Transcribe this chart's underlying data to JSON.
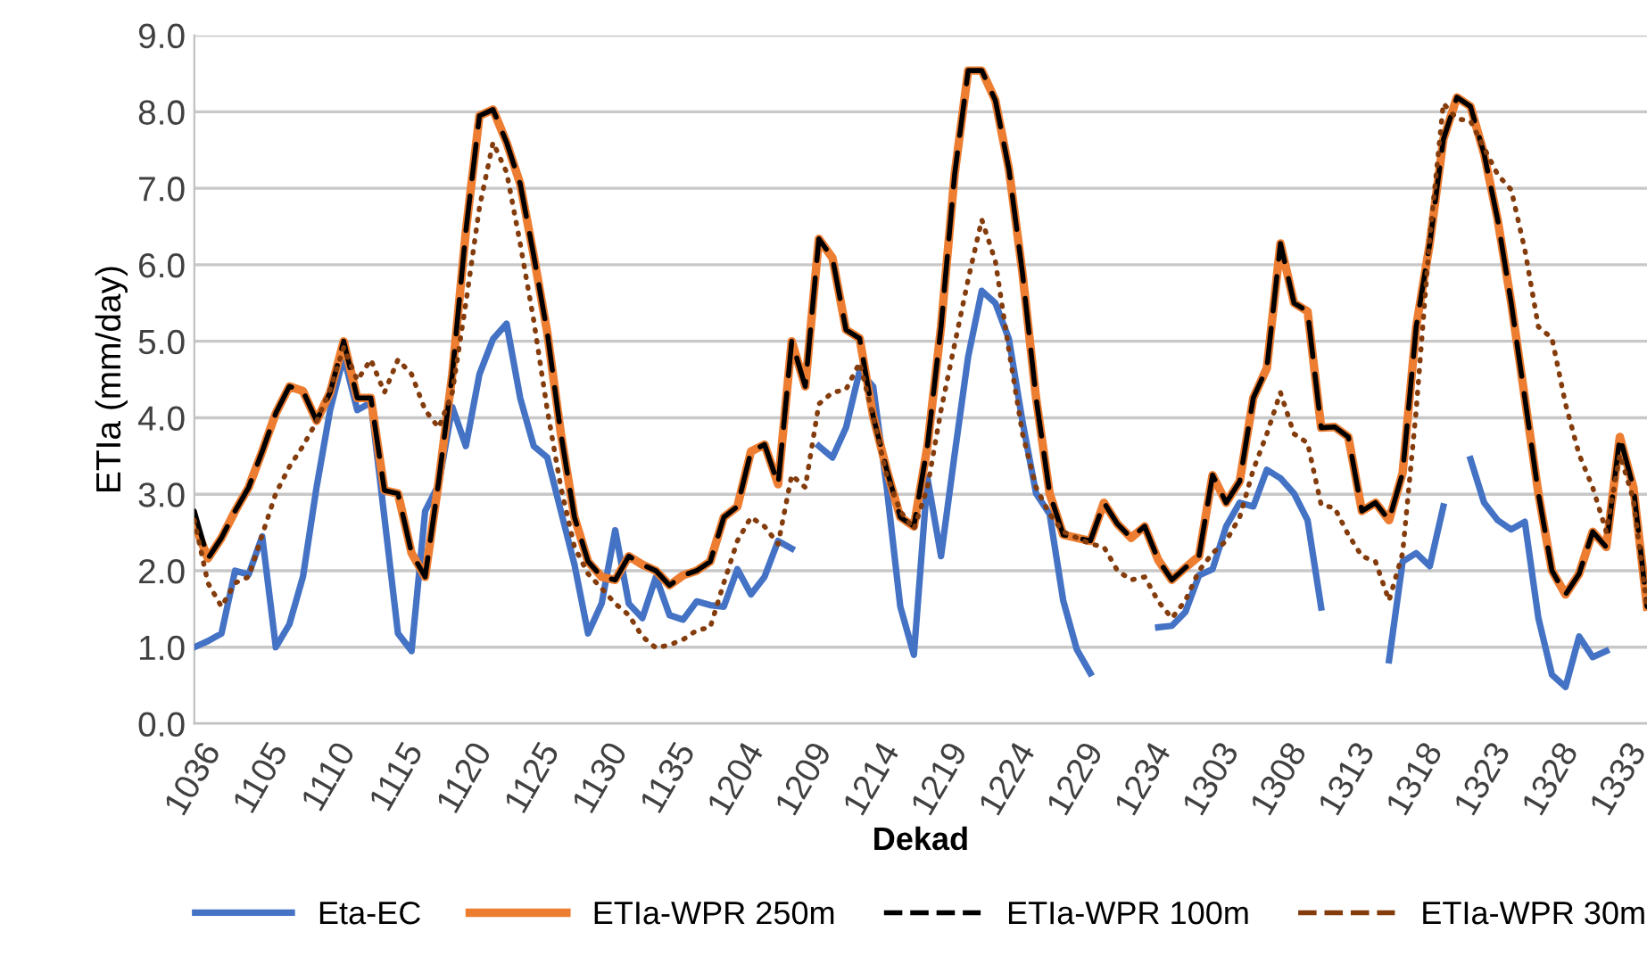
{
  "chart_data": {
    "type": "line",
    "xlabel": "Dekad",
    "ylabel": "ETIa (mm/day)",
    "categories": [
      "1036",
      null,
      null,
      null,
      null,
      "1105",
      null,
      null,
      null,
      null,
      "1110",
      null,
      null,
      null,
      null,
      "1115",
      null,
      null,
      null,
      null,
      "1120",
      null,
      null,
      null,
      null,
      "1125",
      null,
      null,
      null,
      null,
      "1130",
      null,
      null,
      null,
      null,
      "1135",
      null,
      null,
      null,
      null,
      "1204",
      null,
      null,
      null,
      null,
      "1209",
      null,
      null,
      null,
      null,
      "1214",
      null,
      null,
      null,
      null,
      "1219",
      null,
      null,
      null,
      null,
      "1224",
      null,
      null,
      null,
      null,
      "1229",
      null,
      null,
      null,
      null,
      "1234",
      null,
      null,
      null,
      null,
      "1303",
      null,
      null,
      null,
      null,
      "1308",
      null,
      null,
      null,
      null,
      "1313",
      null,
      null,
      null,
      null,
      "1318",
      null,
      null,
      null,
      null,
      "1323",
      null,
      null,
      null,
      null,
      "1328",
      null,
      null,
      null,
      null,
      "1333",
      null,
      null
    ],
    "ylim": [
      0,
      9
    ],
    "yticks": [
      {
        "value": 0,
        "label": "0.0"
      },
      {
        "value": 1,
        "label": "1.0"
      },
      {
        "value": 2,
        "label": "2.0"
      },
      {
        "value": 3,
        "label": "3.0"
      },
      {
        "value": 4,
        "label": "4.0"
      },
      {
        "value": 5,
        "label": "5.0"
      },
      {
        "value": 6,
        "label": "6.0"
      },
      {
        "value": 7,
        "label": "7.0"
      },
      {
        "value": 8,
        "label": "8.0"
      },
      {
        "value": 9,
        "label": "9.0"
      }
    ],
    "grid": "y",
    "legend": "bottom",
    "marker": "none",
    "series": [
      {
        "name": "Eta-EC",
        "color": "#4472c4",
        "line_style": "solid",
        "values": [
          1.0,
          1.08,
          1.18,
          2.0,
          1.95,
          2.45,
          1.0,
          1.3,
          1.92,
          3.09,
          4.1,
          4.8,
          4.1,
          4.2,
          2.7,
          1.18,
          0.95,
          2.78,
          3.13,
          4.14,
          3.63,
          4.57,
          5.03,
          5.23,
          4.26,
          3.63,
          3.48,
          2.78,
          2.08,
          1.18,
          1.57,
          2.53,
          1.57,
          1.38,
          1.92,
          1.42,
          1.36,
          1.6,
          1.55,
          1.53,
          2.02,
          1.69,
          1.92,
          2.39,
          2.29,
          null,
          3.63,
          3.48,
          3.87,
          4.61,
          4.41,
          3.09,
          1.53,
          0.9,
          3.21,
          2.19,
          3.52,
          4.8,
          5.66,
          5.5,
          5.03,
          3.95,
          3.01,
          2.74,
          1.61,
          0.97,
          0.66,
          null,
          null,
          null,
          null,
          1.26,
          1.28,
          1.46,
          1.94,
          2.02,
          2.58,
          2.89,
          2.84,
          3.32,
          3.21,
          3.01,
          2.66,
          1.52,
          null,
          null,
          null,
          null,
          0.83,
          2.12,
          2.23,
          2.06,
          2.84,
          null,
          3.46,
          2.89,
          2.66,
          2.54,
          2.64,
          1.38,
          0.64,
          0.48,
          1.14,
          0.87,
          0.95,
          null,
          null,
          null
        ]
      },
      {
        "name": "ETIa-WPR 250m",
        "color": "#ed7d31",
        "line_style": "solid",
        "values": [
          2.62,
          2.16,
          2.43,
          2.78,
          3.09,
          3.56,
          4.06,
          4.41,
          4.35,
          3.96,
          4.33,
          5.0,
          4.26,
          4.26,
          3.05,
          3.01,
          2.23,
          1.92,
          3.17,
          4.57,
          6.44,
          7.95,
          8.03,
          7.6,
          7.06,
          6.12,
          5.11,
          3.79,
          2.7,
          2.12,
          1.92,
          1.88,
          2.19,
          2.08,
          2.0,
          1.81,
          1.94,
          2.0,
          2.12,
          2.7,
          2.84,
          3.56,
          3.65,
          3.13,
          5.0,
          4.41,
          6.34,
          6.09,
          5.15,
          5.04,
          4.02,
          3.32,
          2.7,
          2.58,
          3.63,
          5.19,
          7.18,
          8.54,
          8.54,
          8.15,
          7.25,
          5.89,
          4.26,
          3.01,
          2.47,
          2.43,
          2.39,
          2.89,
          2.61,
          2.43,
          2.58,
          2.14,
          1.88,
          2.04,
          2.19,
          3.25,
          2.89,
          3.17,
          4.26,
          4.65,
          6.28,
          5.5,
          5.39,
          3.87,
          3.88,
          3.75,
          2.78,
          2.89,
          2.66,
          3.28,
          5.19,
          6.28,
          7.64,
          8.19,
          8.07,
          7.45,
          6.59,
          5.5,
          4.26,
          3.01,
          2.0,
          1.69,
          1.96,
          2.51,
          2.31,
          3.75,
          3.09,
          1.53
        ]
      },
      {
        "name": "ETIa-WPR 100m",
        "color": "#000000",
        "line_style": "dashed",
        "values": [
          2.78,
          2.16,
          2.43,
          2.78,
          3.09,
          3.56,
          4.06,
          4.41,
          4.35,
          3.96,
          4.33,
          5.0,
          4.26,
          4.26,
          3.05,
          3.01,
          2.23,
          1.92,
          3.17,
          4.57,
          6.44,
          7.95,
          8.03,
          7.6,
          7.06,
          6.12,
          5.11,
          3.79,
          2.7,
          2.12,
          1.92,
          1.88,
          2.19,
          2.08,
          2.0,
          1.81,
          1.94,
          2.0,
          2.12,
          2.7,
          2.84,
          3.56,
          3.65,
          3.13,
          5.0,
          4.41,
          6.34,
          6.09,
          5.15,
          5.04,
          4.02,
          3.32,
          2.7,
          2.58,
          3.63,
          5.19,
          7.18,
          8.54,
          8.54,
          8.15,
          7.25,
          5.89,
          4.26,
          3.01,
          2.47,
          2.43,
          2.39,
          2.89,
          2.61,
          2.43,
          2.58,
          2.14,
          1.88,
          2.04,
          2.19,
          3.25,
          2.89,
          3.17,
          4.26,
          4.65,
          6.28,
          5.5,
          5.39,
          3.87,
          3.88,
          3.75,
          2.78,
          2.89,
          2.66,
          3.28,
          5.19,
          6.28,
          7.64,
          8.19,
          8.07,
          7.45,
          6.59,
          5.5,
          4.26,
          3.01,
          2.0,
          1.69,
          1.96,
          2.51,
          2.31,
          3.75,
          3.09,
          1.53
        ]
      },
      {
        "name": "ETIa-WPR 30m",
        "color": "#843c0c",
        "line_style": "dotted",
        "values": [
          2.66,
          1.84,
          1.53,
          1.84,
          1.92,
          2.47,
          3.01,
          3.36,
          3.63,
          3.95,
          4.37,
          4.92,
          4.49,
          4.76,
          4.33,
          4.76,
          4.57,
          4.1,
          3.87,
          4.33,
          5.5,
          6.75,
          7.6,
          7.21,
          6.28,
          5.27,
          4.1,
          3.09,
          2.31,
          1.96,
          1.77,
          1.57,
          1.42,
          1.14,
          0.99,
          1.03,
          1.1,
          1.22,
          1.26,
          1.84,
          2.39,
          2.7,
          2.58,
          2.35,
          3.25,
          3.09,
          4.18,
          4.33,
          4.37,
          4.72,
          4.02,
          3.25,
          2.78,
          2.54,
          3.09,
          4.1,
          4.96,
          5.81,
          6.59,
          6.05,
          4.88,
          3.79,
          3.09,
          2.74,
          2.51,
          2.43,
          2.35,
          2.31,
          2.0,
          1.88,
          1.92,
          1.6,
          1.38,
          1.61,
          2.0,
          2.23,
          2.39,
          2.7,
          3.32,
          3.79,
          4.33,
          3.79,
          3.67,
          2.86,
          2.82,
          2.47,
          2.19,
          2.12,
          1.61,
          2.23,
          4.1,
          6.36,
          8.11,
          7.91,
          7.88,
          7.53,
          7.18,
          6.98,
          6.2,
          5.19,
          5.04,
          4.18,
          3.52,
          3.09,
          2.51,
          3.52,
          2.93,
          1.53
        ]
      }
    ]
  }
}
